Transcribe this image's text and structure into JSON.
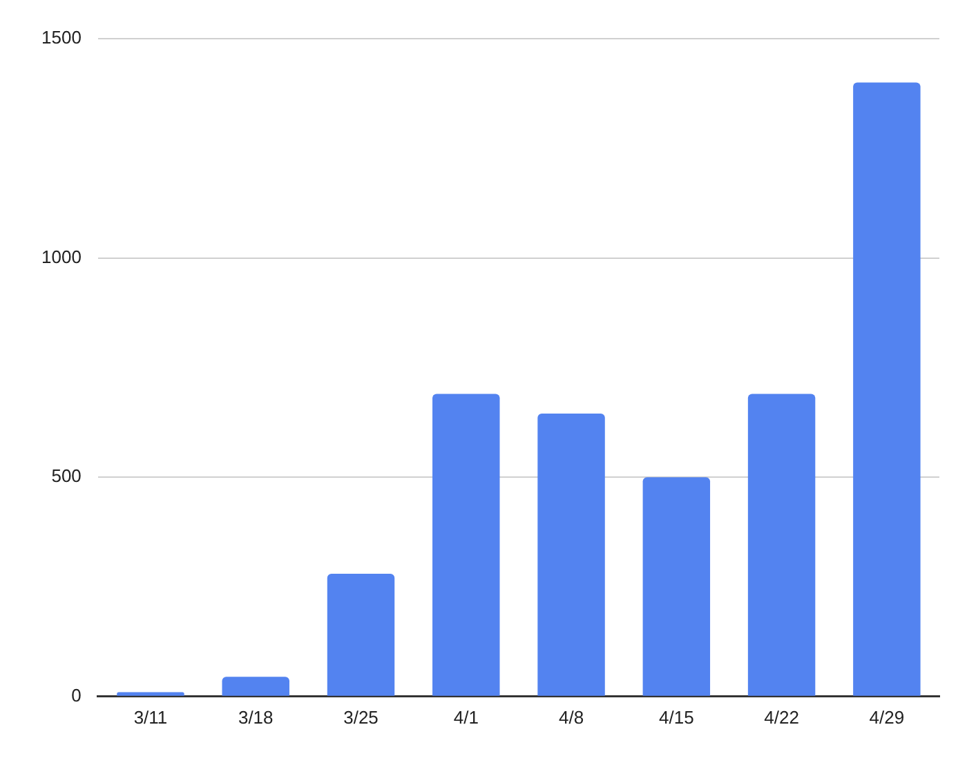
{
  "chart_data": {
    "type": "bar",
    "categories": [
      "3/11",
      "3/18",
      "3/25",
      "4/1",
      "4/8",
      "4/15",
      "4/22",
      "4/29"
    ],
    "values": [
      10,
      45,
      280,
      690,
      645,
      500,
      690,
      1400
    ],
    "color": "#5383f0",
    "ylim": [
      0,
      1500
    ],
    "yticks": [
      0,
      500,
      1000,
      1500
    ],
    "grid": "y",
    "legend": false
  }
}
